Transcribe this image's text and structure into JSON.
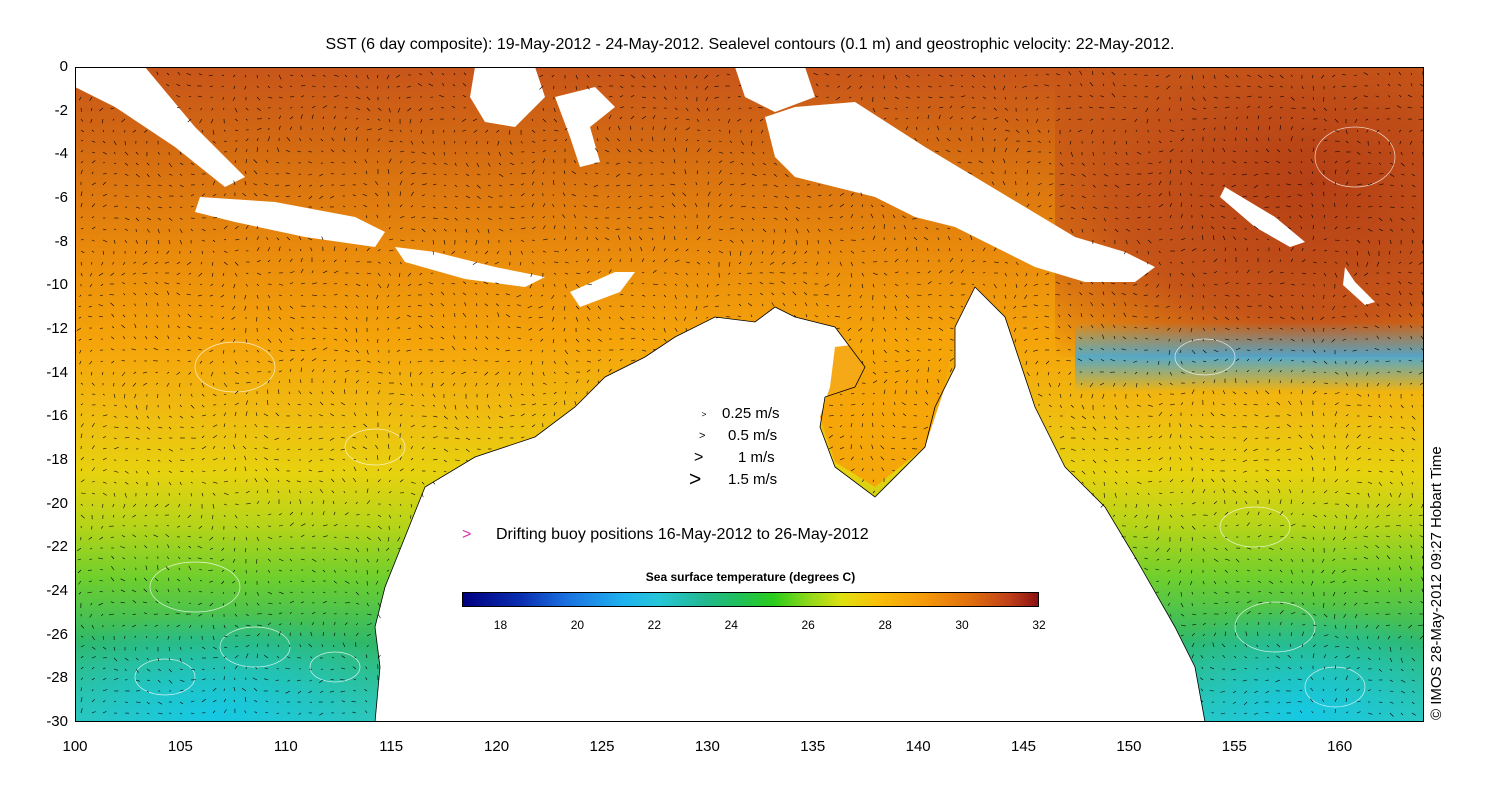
{
  "title": "SST (6 day composite): 19-May-2012 - 24-May-2012. Sealevel contours (0.1 m) and geostrophic velocity: 22-May-2012.",
  "axes": {
    "x_ticks": [
      "100",
      "105",
      "110",
      "115",
      "120",
      "125",
      "130",
      "135",
      "140",
      "145",
      "150",
      "155",
      "160"
    ],
    "y_ticks": [
      "0",
      "-2",
      "-4",
      "-6",
      "-8",
      "-10",
      "-12",
      "-14",
      "-16",
      "-18",
      "-20",
      "-22",
      "-24",
      "-26",
      "-28",
      "-30"
    ],
    "x_range": [
      100,
      164
    ],
    "y_range": [
      -30,
      0
    ]
  },
  "velocity_legend": [
    {
      "label": "0.25 m/s",
      "value": 0.25
    },
    {
      "label": "0.5 m/s",
      "value": 0.5
    },
    {
      "label": "1 m/s",
      "value": 1
    },
    {
      "label": "1.5 m/s",
      "value": 1.5
    }
  ],
  "buoy_legend": {
    "glyph": ">",
    "label": "Drifting buoy positions 16-May-2012 to 26-May-2012",
    "color": "#d633b0"
  },
  "colorbar": {
    "title": "Sea surface temperature (degrees C)",
    "ticks": [
      "18",
      "20",
      "22",
      "24",
      "26",
      "28",
      "30",
      "32"
    ],
    "range": [
      17,
      32
    ]
  },
  "copyright": "© IMOS 28-May-2012 09:27 Hobart Time"
}
